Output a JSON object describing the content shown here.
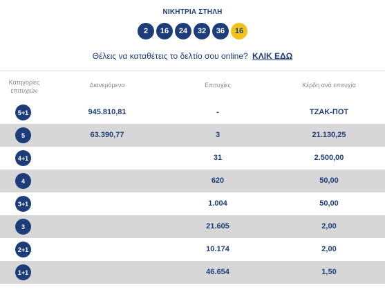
{
  "title": "ΝΙΚΗΤΡΙΑ ΣΤΗΛΗ",
  "numbers": [
    "2",
    "16",
    "24",
    "32",
    "36"
  ],
  "bonus": "16",
  "cta": {
    "text": "Θέλεις να καταθέτεις το δελτίο σου online?",
    "link": "ΚΛΙΚ ΕΔΩ"
  },
  "headers": {
    "categories_line1": "Κατηγορίες",
    "categories_line2": "επιτυχιών",
    "distributed": "Διανεμόμενα",
    "winners": "Επιτυχίες",
    "prize": "Κέρδη ανά επιτυχία"
  },
  "rows": [
    {
      "category": "5+1",
      "distributed": "945.810,81",
      "winners": "-",
      "prize": "ΤΖΑΚ-ΠΟΤ"
    },
    {
      "category": "5",
      "distributed": "63.390,77",
      "winners": "3",
      "prize": "21.130,25"
    },
    {
      "category": "4+1",
      "distributed": "",
      "winners": "31",
      "prize": "2.500,00"
    },
    {
      "category": "4",
      "distributed": "",
      "winners": "620",
      "prize": "50,00"
    },
    {
      "category": "3+1",
      "distributed": "",
      "winners": "1.004",
      "prize": "50,00"
    },
    {
      "category": "3",
      "distributed": "",
      "winners": "21.605",
      "prize": "2,00"
    },
    {
      "category": "2+1",
      "distributed": "",
      "winners": "10.174",
      "prize": "2,00"
    },
    {
      "category": "1+1",
      "distributed": "",
      "winners": "46.654",
      "prize": "1,50"
    }
  ],
  "colors": {
    "accent": "#1c3d7a",
    "bonus": "#f3c21a",
    "row_shade": "#d7d7d7"
  }
}
